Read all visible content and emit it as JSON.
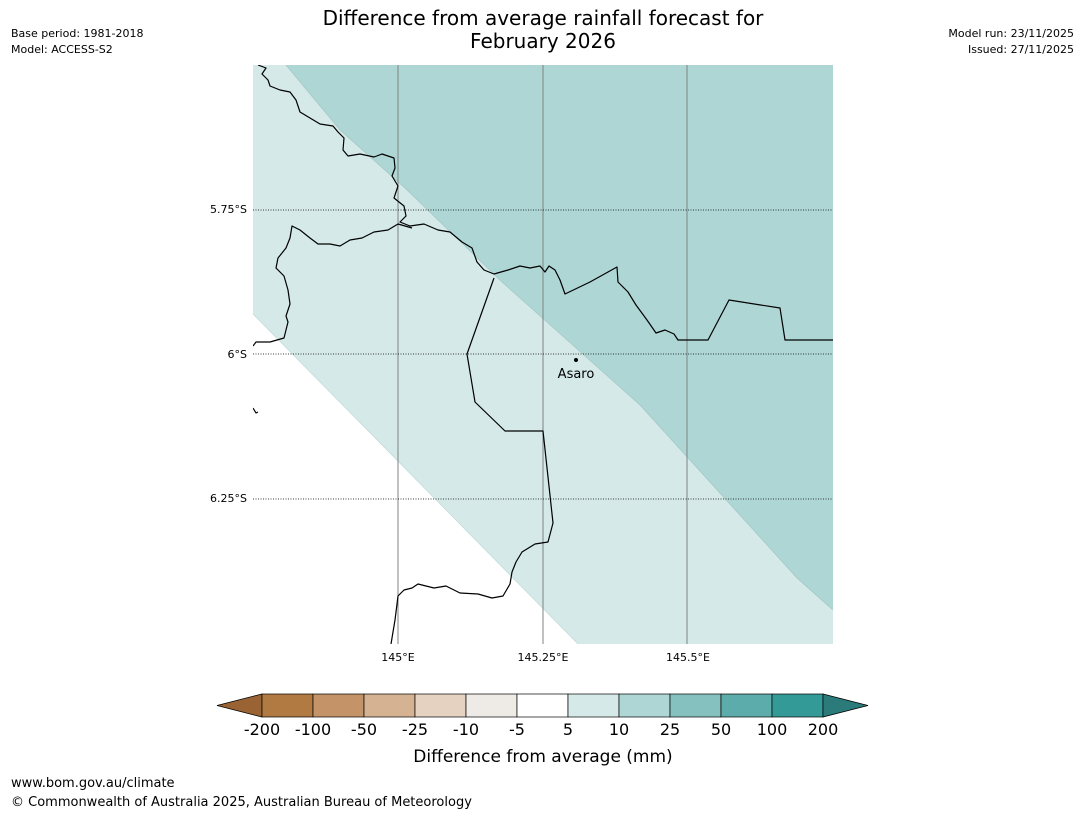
{
  "header": {
    "title_line1": "Difference from average rainfall forecast for",
    "title_line2": "February 2026",
    "base_period": "Base period: 1981-2018",
    "model": "Model: ACCESS-S2",
    "model_run": "Model run: 23/11/2025",
    "issued": "Issued: 27/11/2025"
  },
  "map": {
    "lat_labels": [
      "5.75°S",
      "6°S",
      "6.25°S"
    ],
    "lon_labels": [
      "145°E",
      "145.25°E",
      "145.5°E"
    ],
    "place": "Asaro",
    "zone_colors": {
      "light_teal": "#d4e9e8",
      "mid_teal": "#aed6d5",
      "white": "#ffffff"
    }
  },
  "colorbar": {
    "tick_labels": [
      "-200",
      "-100",
      "-50",
      "-25",
      "-10",
      "-5",
      "5",
      "10",
      "25",
      "50",
      "100",
      "200"
    ],
    "colors": [
      "#9a6333",
      "#b07a42",
      "#c49468",
      "#d4b292",
      "#e6d2c0",
      "#eeeae6",
      "#ffffff",
      "#d4e9e8",
      "#aed6d5",
      "#85c1bf",
      "#5bacab",
      "#349a98",
      "#2a7b79"
    ],
    "label": "Difference from average (mm)"
  },
  "footer": {
    "url": "www.bom.gov.au/climate",
    "copyright": "© Commonwealth of Australia 2025, Australian Bureau of Meteorology"
  }
}
